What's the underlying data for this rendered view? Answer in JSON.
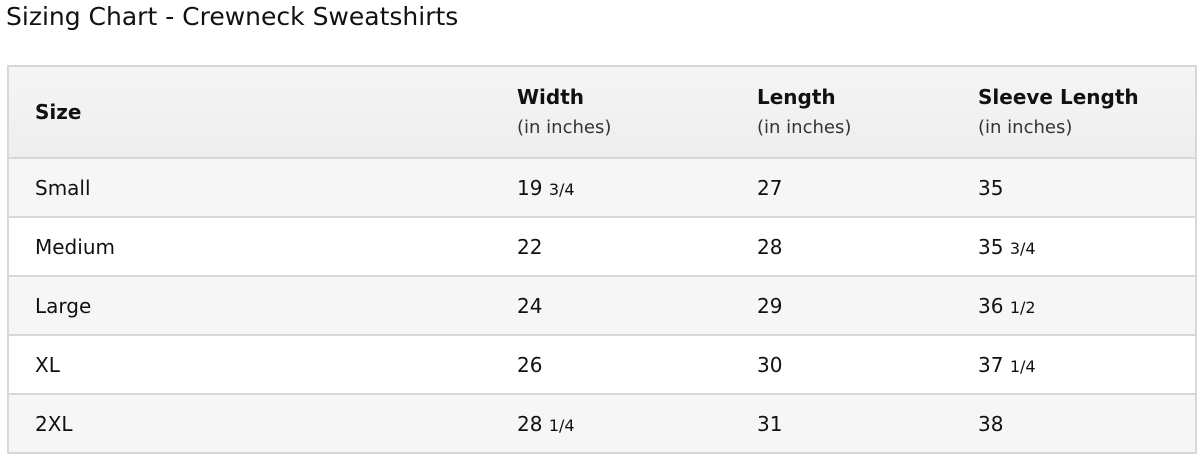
{
  "title": "Sizing Chart - Crewneck Sweatshirts",
  "headers": [
    {
      "label": "Size",
      "sub": ""
    },
    {
      "label": "Width",
      "sub": "(in inches)"
    },
    {
      "label": "Length",
      "sub": "(in inches)"
    },
    {
      "label": "Sleeve Length",
      "sub": "(in inches)"
    }
  ],
  "rows": [
    {
      "size": "Small",
      "width": "19",
      "width_frac": "3/4",
      "length": "27",
      "sleeve": "35",
      "sleeve_frac": ""
    },
    {
      "size": "Medium",
      "width": "22",
      "width_frac": "",
      "length": "28",
      "sleeve": "35",
      "sleeve_frac": "3/4"
    },
    {
      "size": "Large",
      "width": "24",
      "width_frac": "",
      "length": "29",
      "sleeve": "36",
      "sleeve_frac": "1/2"
    },
    {
      "size": "XL",
      "width": "26",
      "width_frac": "",
      "length": "30",
      "sleeve": "37",
      "sleeve_frac": "1/4"
    },
    {
      "size": "2XL",
      "width": "28",
      "width_frac": "1/4",
      "length": "31",
      "sleeve": "38",
      "sleeve_frac": ""
    }
  ]
}
